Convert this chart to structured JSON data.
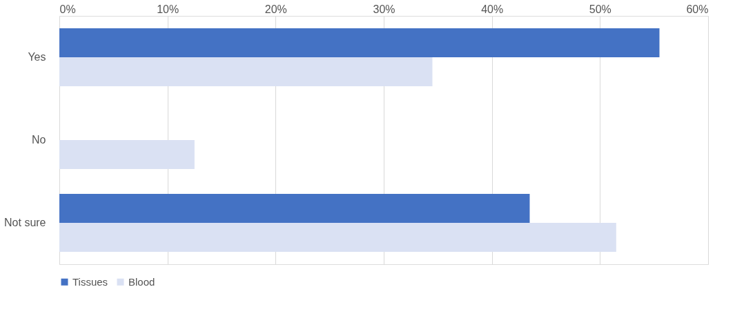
{
  "chart_data": {
    "type": "bar",
    "orientation": "horizontal",
    "categories": [
      "Yes",
      "No",
      "Not sure"
    ],
    "series": [
      {
        "name": "Tissues",
        "color": "#4472c4",
        "values": [
          55.5,
          0,
          43.5
        ]
      },
      {
        "name": "Blood",
        "color": "#dae1f3",
        "values": [
          34.5,
          12.5,
          51.5
        ]
      }
    ],
    "xlim": [
      0,
      60
    ],
    "xticks": [
      {
        "value": 0,
        "label": "0%"
      },
      {
        "value": 10,
        "label": "10%"
      },
      {
        "value": 20,
        "label": "20%"
      },
      {
        "value": 30,
        "label": "30%"
      },
      {
        "value": 40,
        "label": "40%"
      },
      {
        "value": 50,
        "label": "50%"
      },
      {
        "value": 60,
        "label": "60%"
      }
    ],
    "grid": "x",
    "legend": "bottom"
  }
}
